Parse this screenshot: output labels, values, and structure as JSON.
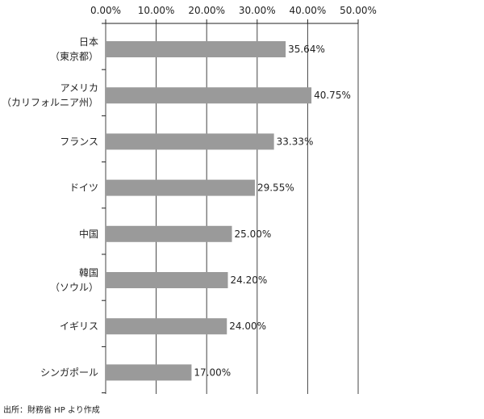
{
  "chart_data": {
    "type": "bar",
    "orientation": "horizontal",
    "categories": [
      [
        "日本",
        "（東京都）"
      ],
      [
        "アメリカ",
        "（カリフォルニア州）"
      ],
      [
        "フランス"
      ],
      [
        "ドイツ"
      ],
      [
        "中国"
      ],
      [
        "韓国",
        "（ソウル）"
      ],
      [
        "イギリス"
      ],
      [
        "シンガポール"
      ]
    ],
    "values": [
      35.64,
      40.75,
      33.33,
      29.55,
      25.0,
      24.2,
      24.0,
      17.0
    ],
    "value_labels": [
      "35.64%",
      "40.75%",
      "33.33%",
      "29.55%",
      "25.00%",
      "24.20%",
      "24.00%",
      "17.00%"
    ],
    "xlim": [
      0,
      50
    ],
    "x_ticks": [
      0,
      10,
      20,
      30,
      40,
      50
    ],
    "x_tick_labels": [
      "0.00%",
      "10.00%",
      "20.00%",
      "30.00%",
      "40.00%",
      "50.00%"
    ],
    "x_axis_position": "top",
    "grid": true,
    "bar_color": "#9a9a9a",
    "title": "",
    "xlabel": "",
    "ylabel": ""
  },
  "source": "出所：財務省 HP より作成"
}
